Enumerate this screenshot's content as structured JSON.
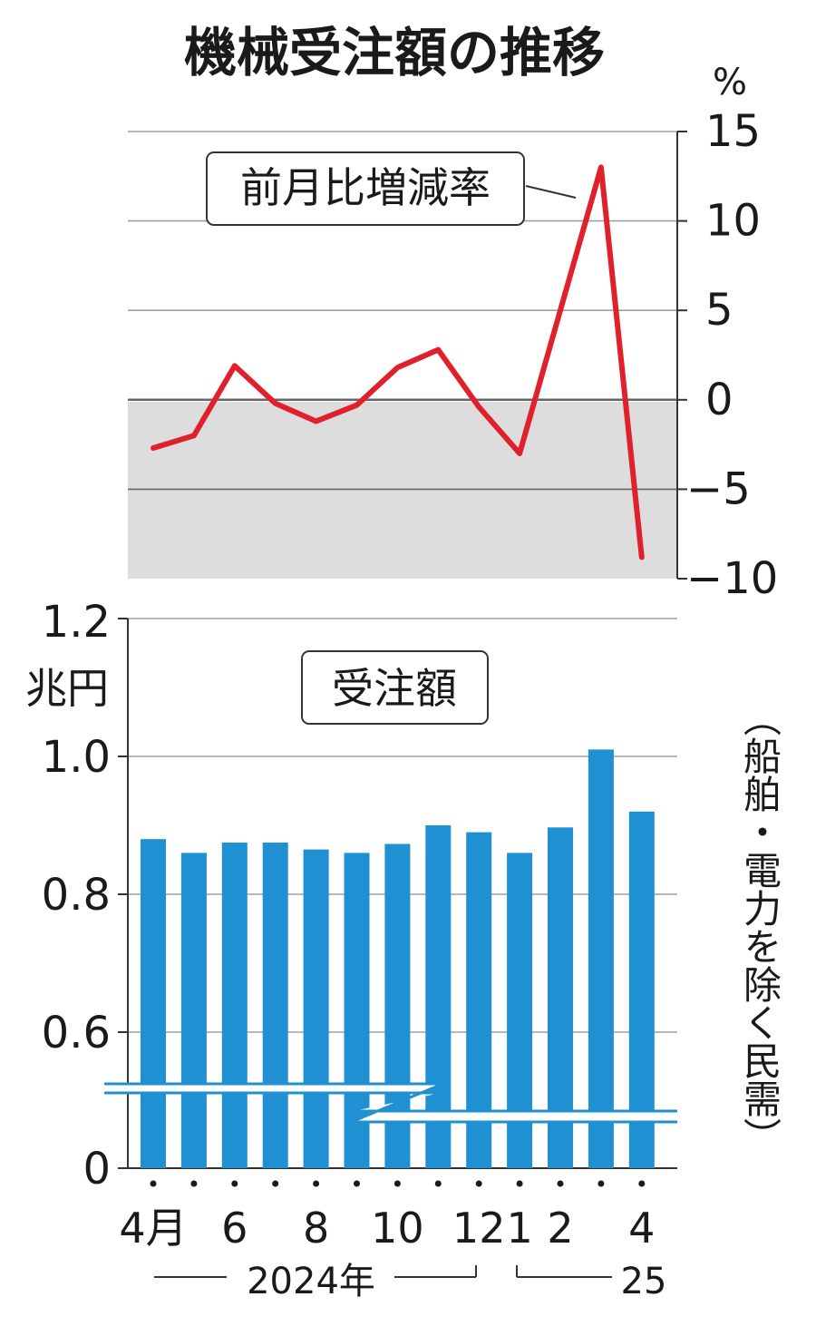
{
  "title": "機械受注額の推移",
  "note": "（船舶・電力を除く民需）",
  "chart_data": [
    {
      "type": "line",
      "label": "前月比増減率",
      "unit": "%",
      "ylim": [
        -10,
        15
      ],
      "yticks": [
        "15",
        "10",
        "5",
        "0",
        "−5",
        "−10"
      ],
      "ytick_values": [
        15,
        10,
        5,
        0,
        -5,
        -10
      ],
      "values": [
        -2.7,
        -2.0,
        1.9,
        -0.2,
        -1.2,
        -0.3,
        1.8,
        2.8,
        -0.4,
        -3.0,
        5.0,
        13.0,
        -8.8
      ],
      "line_color": "#e0202a",
      "negative_band_color": "#dddddd"
    },
    {
      "type": "bar",
      "label": "受注額",
      "unit": "兆円",
      "ylim_label_top": "1.2",
      "yticks": [
        "1.2",
        "1.0",
        "0.8",
        "0.6",
        "0"
      ],
      "ytick_values": [
        1.2,
        1.0,
        0.8,
        0.6,
        0
      ],
      "axis_break": true,
      "values": [
        0.88,
        0.86,
        0.875,
        0.875,
        0.865,
        0.86,
        0.873,
        0.9,
        0.89,
        0.86,
        0.897,
        1.01,
        0.92
      ],
      "bar_color": "#1f90d2",
      "x_tick_labels": [
        "4月",
        "",
        "6",
        "",
        "8",
        "",
        "10",
        "",
        "12",
        "1",
        "2",
        "",
        "4"
      ],
      "year_labels": [
        "2024年",
        "25"
      ]
    }
  ]
}
